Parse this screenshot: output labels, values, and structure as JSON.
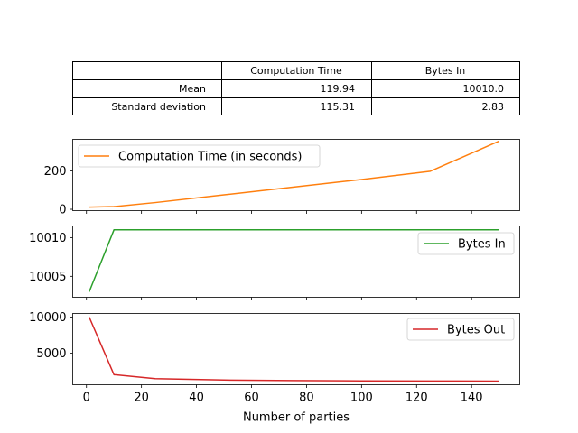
{
  "table": {
    "col_headers": [
      "",
      "Computation Time",
      "Bytes In"
    ],
    "rows": [
      {
        "label": "Mean",
        "values": [
          "119.94",
          "10010.0"
        ]
      },
      {
        "label": "Standard deviation",
        "values": [
          "115.31",
          "2.83"
        ]
      }
    ]
  },
  "chart_data": [
    {
      "type": "line",
      "xlabel": "",
      "ylabel": "",
      "xlim": [
        -5,
        157.5
      ],
      "ylim": [
        -7,
        364
      ],
      "yticks": [
        0,
        200
      ],
      "series": [
        {
          "name": "Computation Time (in seconds)",
          "color": "#ff7f0e",
          "x": [
            1,
            10,
            25,
            50,
            75,
            100,
            125,
            150
          ],
          "y": [
            11,
            14,
            35,
            75,
            115,
            155,
            198,
            355
          ]
        }
      ],
      "legend": "top-left",
      "grid": false
    },
    {
      "type": "line",
      "xlabel": "",
      "ylabel": "",
      "xlim": [
        -5,
        157.5
      ],
      "ylim": [
        10002.3,
        10011.5
      ],
      "yticks": [
        10005,
        10010
      ],
      "series": [
        {
          "name": "Bytes In",
          "color": "#2ca02c",
          "x": [
            1,
            10,
            25,
            50,
            75,
            100,
            125,
            150
          ],
          "y": [
            10003,
            10011,
            10011,
            10011,
            10011,
            10011,
            10011,
            10011
          ]
        }
      ],
      "legend": "right",
      "grid": false
    },
    {
      "type": "line",
      "xlabel": "Number of parties",
      "ylabel": "",
      "xlim": [
        -5,
        157.5
      ],
      "ylim": [
        600,
        10500
      ],
      "xticks": [
        0,
        20,
        40,
        60,
        80,
        100,
        120,
        140
      ],
      "yticks": [
        5000,
        10000
      ],
      "series": [
        {
          "name": "Bytes Out",
          "color": "#d62728",
          "x": [
            1,
            10,
            25,
            50,
            75,
            100,
            125,
            150
          ],
          "y": [
            10000,
            2000,
            1450,
            1250,
            1180,
            1140,
            1120,
            1100
          ]
        }
      ],
      "legend": "top-right",
      "grid": false
    }
  ]
}
